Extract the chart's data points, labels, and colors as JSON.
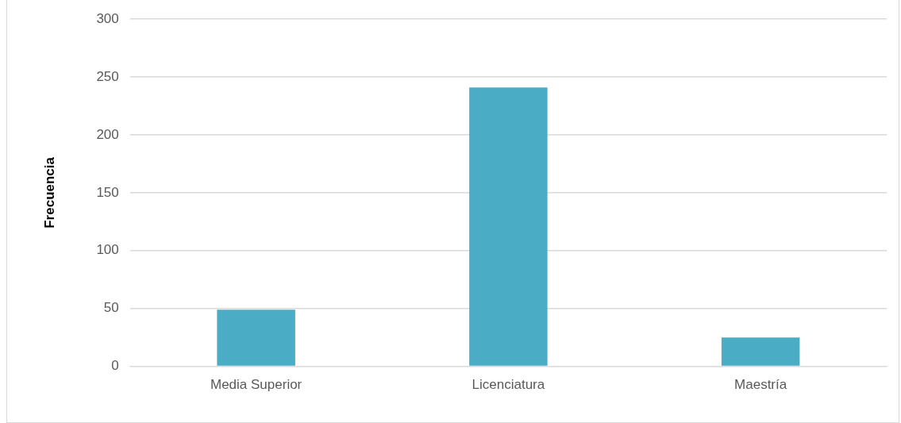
{
  "chart_data": {
    "type": "bar",
    "ylabel": "Frecuencia",
    "categories": [
      "Media Superior",
      "Licenciatura",
      "Maestría"
    ],
    "values": [
      49,
      241,
      25
    ],
    "color": "#4bacc6",
    "ylim": [
      0,
      300
    ],
    "yticks": [
      0,
      50,
      100,
      150,
      200,
      250,
      300
    ],
    "grid": "y",
    "legend": false
  }
}
